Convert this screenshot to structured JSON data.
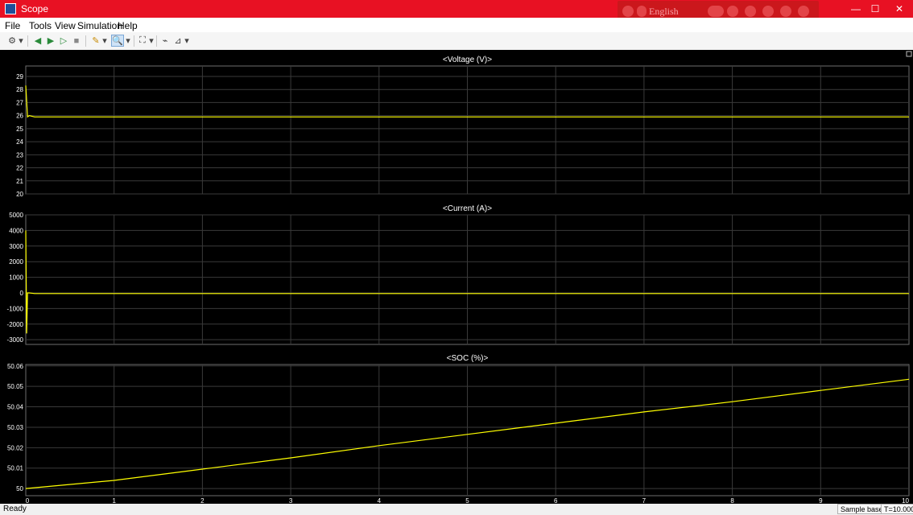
{
  "window": {
    "title": "Scope",
    "minimize": "—",
    "maximize": "☐",
    "close": "✕"
  },
  "lang_bar": {
    "label": "English"
  },
  "menu": [
    "File",
    "Tools",
    "View",
    "Simulation",
    "Help"
  ],
  "toolbar": [
    {
      "name": "settings-icon",
      "glyph": "⚙",
      "dropdown": true
    },
    {
      "name": "step-back-icon",
      "glyph": "◀",
      "dropdown": false
    },
    {
      "name": "run-icon",
      "glyph": "▶",
      "dropdown": false
    },
    {
      "name": "step-forward-icon",
      "glyph": "▷",
      "dropdown": false
    },
    {
      "name": "stop-icon",
      "glyph": "■",
      "dropdown": false
    },
    {
      "name": "highlight-icon",
      "glyph": "✎",
      "dropdown": true
    },
    {
      "name": "zoom-icon",
      "glyph": "🔍",
      "dropdown": true
    },
    {
      "name": "scale-axes-icon",
      "glyph": "⛶",
      "dropdown": true
    },
    {
      "name": "triggers-icon",
      "glyph": "⌁",
      "dropdown": false
    },
    {
      "name": "measurements-icon",
      "glyph": "⊿",
      "dropdown": true
    }
  ],
  "colors": {
    "title_bar": "#e81123",
    "plot_bg": "#000000",
    "trace": "#ffff00",
    "grid": "#3a3a3a",
    "axis_text": "#ffffff"
  },
  "chart_data": [
    {
      "type": "line",
      "title": "<Voltage (V)>",
      "xlim": [
        0,
        10
      ],
      "ylim": [
        20,
        29.8
      ],
      "yticks": [
        20,
        21,
        22,
        23,
        24,
        25,
        26,
        27,
        28,
        29
      ],
      "xticks": [],
      "grid": true,
      "series": [
        {
          "x": [
            0,
            0.02,
            0.04,
            0.1,
            10
          ],
          "y": [
            28.3,
            25.9,
            26.0,
            25.9,
            25.9
          ]
        }
      ]
    },
    {
      "type": "line",
      "title": "<Current (A)>",
      "xlim": [
        0,
        10
      ],
      "ylim": [
        -3300,
        5000
      ],
      "yticks": [
        -3000,
        -2000,
        -1000,
        0,
        1000,
        2000,
        3000,
        4000,
        5000
      ],
      "xticks": [],
      "grid": true,
      "series": [
        {
          "x": [
            0,
            0.01,
            0.02,
            0.04,
            0.1,
            10
          ],
          "y": [
            4000,
            -2600,
            0,
            0,
            -40,
            -40
          ]
        }
      ]
    },
    {
      "type": "line",
      "title": "<SOC (%)>",
      "xlim": [
        0,
        10
      ],
      "ylim": [
        49.9965,
        50.0607
      ],
      "yticks": [
        50,
        50.01,
        50.02,
        50.03,
        50.04,
        50.05,
        50.06
      ],
      "xticks": [
        0,
        1,
        2,
        3,
        4,
        5,
        6,
        7,
        8,
        9,
        10
      ],
      "grid": true,
      "series": [
        {
          "x": [
            0,
            1,
            2,
            3,
            4,
            5,
            6,
            7,
            8,
            9,
            10
          ],
          "y": [
            50.0,
            50.004,
            50.0095,
            50.015,
            50.021,
            50.0265,
            50.032,
            50.0375,
            50.0425,
            50.048,
            50.0535
          ]
        }
      ]
    }
  ],
  "status": {
    "left": "Ready",
    "mode": "Sample based",
    "time": "T=10.000"
  }
}
